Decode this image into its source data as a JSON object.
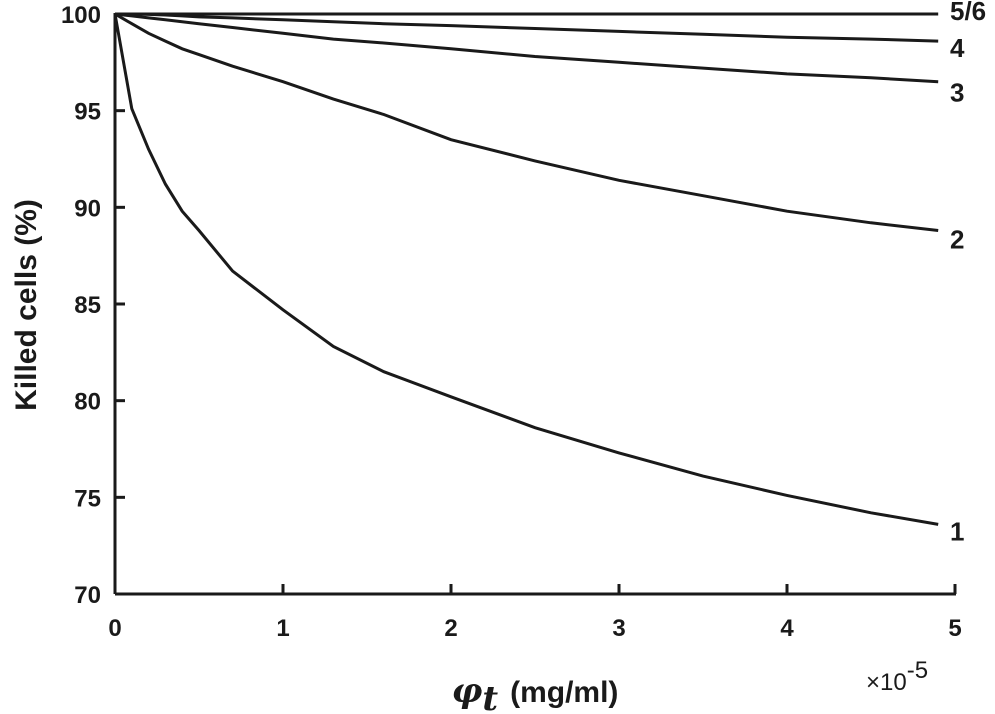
{
  "chart_data": {
    "type": "line",
    "title": "",
    "xlabel_symbol": "φ",
    "xlabel_subscript": "t",
    "xlabel_unit": "(mg/ml)",
    "ylabel": "Killed cells (%)",
    "x_multiplier": "×10",
    "x_multiplier_exponent": "-5",
    "xlim": [
      0,
      5
    ],
    "ylim": [
      70,
      100
    ],
    "xticks": [
      "0",
      "1",
      "2",
      "3",
      "4",
      "5"
    ],
    "yticks": [
      "70",
      "75",
      "80",
      "85",
      "90",
      "95",
      "100"
    ],
    "grid": false,
    "x": [
      0,
      0.1,
      0.2,
      0.3,
      0.4,
      0.5,
      0.7,
      1.0,
      1.3,
      1.6,
      2.0,
      2.5,
      3.0,
      3.5,
      4.0,
      4.5,
      4.9
    ],
    "series": [
      {
        "name": "1",
        "values": [
          100,
          95.1,
          93.0,
          91.2,
          89.8,
          88.8,
          86.7,
          84.7,
          82.8,
          81.5,
          80.2,
          78.6,
          77.3,
          76.1,
          75.1,
          74.2,
          73.6
        ]
      },
      {
        "name": "2",
        "values": [
          100,
          99.5,
          99.0,
          98.6,
          98.2,
          97.9,
          97.3,
          96.5,
          95.6,
          94.8,
          93.5,
          92.4,
          91.4,
          90.6,
          89.8,
          89.2,
          88.8
        ]
      },
      {
        "name": "3",
        "values": [
          100,
          99.9,
          99.8,
          99.7,
          99.6,
          99.5,
          99.3,
          99.0,
          98.7,
          98.5,
          98.2,
          97.8,
          97.5,
          97.2,
          96.9,
          96.7,
          96.5
        ]
      },
      {
        "name": "4",
        "values": [
          100,
          100,
          99.98,
          99.95,
          99.9,
          99.85,
          99.8,
          99.7,
          99.6,
          99.5,
          99.4,
          99.25,
          99.1,
          98.95,
          98.8,
          98.7,
          98.6
        ]
      },
      {
        "name": "5/6",
        "values": [
          100,
          100,
          100,
          100,
          100,
          100,
          100,
          100,
          100,
          100,
          100,
          100,
          100,
          100,
          100,
          100,
          100
        ]
      }
    ]
  }
}
